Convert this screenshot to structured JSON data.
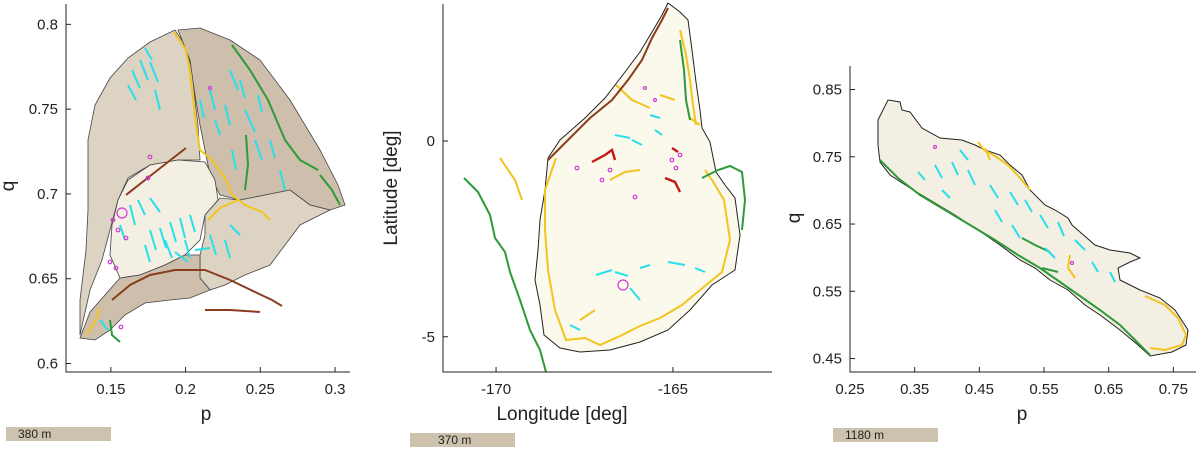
{
  "panels": [
    {
      "id": "left",
      "xlabel": "p",
      "ylabel": "q",
      "xlim": [
        0.12,
        0.31
      ],
      "ylim": [
        0.595,
        0.812
      ],
      "xticks": [
        "0.15",
        "0.2",
        "0.25",
        "0.3"
      ],
      "yticks": [
        "0.6",
        "0.65",
        "0.7",
        "0.75",
        "0.8"
      ],
      "scale_label": "380 m"
    },
    {
      "id": "middle",
      "xlabel": "Longitude [deg]",
      "ylabel": "Latitude [deg]",
      "xlim": [
        -171.5,
        -162.2
      ],
      "ylim": [
        -5.9,
        3.5
      ],
      "xticks": [
        "-170",
        "-165"
      ],
      "yticks": [
        "-5",
        "0"
      ],
      "scale_label": "370 m"
    },
    {
      "id": "right",
      "xlabel": "p",
      "ylabel": "q",
      "xlim": [
        0.25,
        0.785
      ],
      "ylim": [
        0.43,
        0.885
      ],
      "xticks": [
        "0.25",
        "0.35",
        "0.45",
        "0.55",
        "0.65",
        "0.75"
      ],
      "yticks": [
        "0.45",
        "0.55",
        "0.65",
        "0.75",
        "0.85"
      ],
      "scale_label": "1180 m"
    }
  ],
  "colors": {
    "axis": "#222222",
    "unit_light": "#f3efe3",
    "unit_mid": "#ddd3c3",
    "unit_dark": "#cdbfac",
    "unit_pale": "#fbf8ec",
    "outline": "#333333",
    "green_line": "#2e9a3a",
    "yellow_line": "#f2c41f",
    "brown_line": "#8a3d1e",
    "red_line": "#c31818",
    "cyan_line": "#27e0ea",
    "magenta_point": "#d03bd6",
    "scale_bar": "#cdc2ae"
  }
}
